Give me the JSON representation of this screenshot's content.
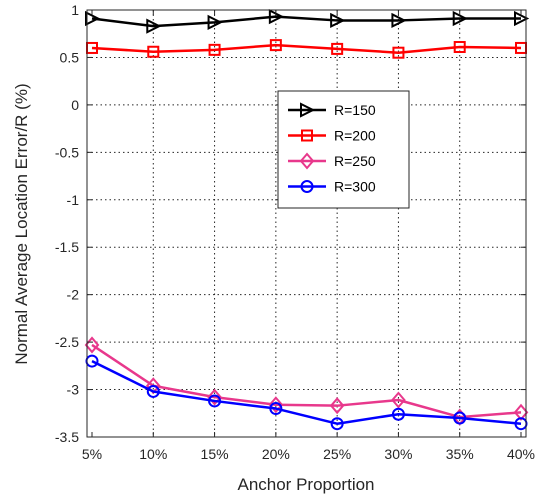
{
  "chart_data": {
    "type": "line",
    "title": "",
    "xlabel": "Anchor Proportion",
    "ylabel": "Normal Average Location Error/R (%)",
    "categories": [
      "5%",
      "10%",
      "15%",
      "20%",
      "25%",
      "30%",
      "35%",
      "40%"
    ],
    "ylim": [
      -3.5,
      1
    ],
    "yticks": [
      1,
      0.5,
      0,
      -0.5,
      -1,
      -1.5,
      -2,
      -2.5,
      -3,
      -3.5
    ],
    "ytick_labels": [
      "1",
      "0.5",
      "0",
      "-0.5",
      "-1",
      "-1.5",
      "-2",
      "-2.5",
      "-3",
      "-3.5"
    ],
    "grid": true,
    "legend_position": "upper-center",
    "series": [
      {
        "name": "R=150",
        "color": "#000000",
        "marker": "triangle-right",
        "values": [
          0.91,
          0.83,
          0.87,
          0.93,
          0.89,
          0.89,
          0.91,
          0.91
        ]
      },
      {
        "name": "R=200",
        "color": "#ff0000",
        "marker": "square",
        "values": [
          0.6,
          0.56,
          0.58,
          0.63,
          0.59,
          0.55,
          0.61,
          0.6
        ]
      },
      {
        "name": "R=250",
        "color": "#e8388c",
        "marker": "diamond",
        "values": [
          -2.53,
          -2.96,
          -3.08,
          -3.16,
          -3.17,
          -3.11,
          -3.29,
          -3.24
        ]
      },
      {
        "name": "R=300",
        "color": "#0000ff",
        "marker": "circle",
        "values": [
          -2.7,
          -3.02,
          -3.12,
          -3.2,
          -3.36,
          -3.26,
          -3.3,
          -3.36
        ]
      }
    ]
  }
}
